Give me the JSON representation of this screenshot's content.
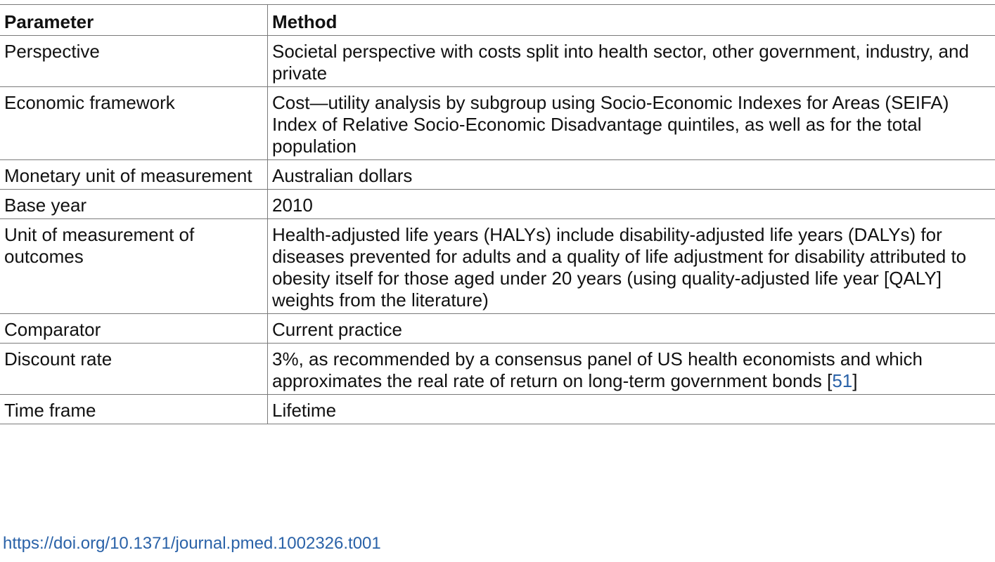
{
  "table": {
    "headers": {
      "parameter": "Parameter",
      "method": "Method"
    },
    "rows": [
      {
        "parameter": "Perspective",
        "method": "Societal perspective with costs split into health sector, other government, industry, and private"
      },
      {
        "parameter": "Economic framework",
        "method": "Cost—utility analysis by subgroup using Socio-Economic Indexes for Areas (SEIFA) Index of Relative Socio-Economic Disadvantage quintiles, as well as for the total population"
      },
      {
        "parameter": "Monetary unit of measurement",
        "method": "Australian dollars"
      },
      {
        "parameter": "Base year",
        "method": "2010"
      },
      {
        "parameter": "Unit of measurement of outcomes",
        "method": "Health-adjusted life years (HALYs) include disability-adjusted life years (DALYs) for diseases prevented for adults and a quality of life adjustment for disability attributed to obesity itself for those aged under 20 years (using quality-adjusted life year [QALY] weights from the literature)"
      },
      {
        "parameter": "Comparator",
        "method": "Current practice"
      },
      {
        "parameter": "Discount rate",
        "method": "3%, as recommended by a consensus panel of US health economists and which approximates the real rate of return on long-term government bonds",
        "ref_open": "[",
        "ref_number": "51",
        "ref_close": "]"
      },
      {
        "parameter": "Time frame",
        "method": "Lifetime"
      }
    ]
  },
  "doi": "https://doi.org/10.1371/journal.pmed.1002326.t001",
  "colors": {
    "link": "#2a62a8",
    "rule": "#7a7a7a",
    "text": "#111111"
  }
}
